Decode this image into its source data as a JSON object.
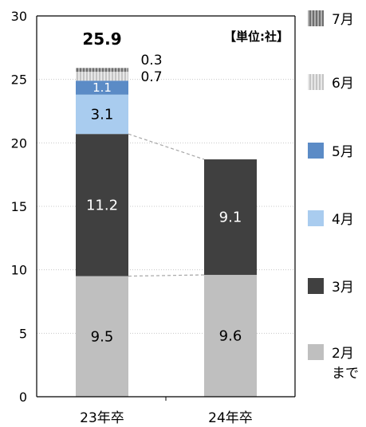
{
  "chart_data": {
    "type": "bar",
    "stacked": true,
    "categories": [
      "23年卒",
      "24年卒"
    ],
    "unit_note": "【単位:社】",
    "ylim": [
      0,
      30
    ],
    "yticks": [
      0,
      5,
      10,
      15,
      20,
      25,
      30
    ],
    "grid": true,
    "legend_position": "right",
    "total_labels": [
      "25.9",
      ""
    ],
    "series": [
      {
        "name": "2月まで",
        "color": "#bfbfbf",
        "values": [
          9.5,
          9.6
        ],
        "labels": [
          "9.5",
          "9.6"
        ],
        "label_color": "#000000"
      },
      {
        "name": "3月",
        "color": "#404040",
        "values": [
          11.2,
          9.1
        ],
        "labels": [
          "11.2",
          "9.1"
        ],
        "label_color": "#ffffff"
      },
      {
        "name": "4月",
        "color": "#a9ccef",
        "values": [
          3.1,
          0
        ],
        "labels": [
          "3.1",
          ""
        ],
        "label_color": "#000000"
      },
      {
        "name": "5月",
        "color": "#5b8bc6",
        "values": [
          1.1,
          0
        ],
        "labels": [
          "1.1",
          ""
        ],
        "label_color": "#ffffff"
      },
      {
        "name": "6月",
        "color": "#dcdcdc",
        "values": [
          0.7,
          0
        ],
        "labels": [
          "0.7",
          ""
        ],
        "label_color": "#000000",
        "pattern": "vstripe-light"
      },
      {
        "name": "7月",
        "color": "#8c8c8c",
        "values": [
          0.3,
          0
        ],
        "labels": [
          "0.3",
          ""
        ],
        "label_color": "#000000",
        "pattern": "vstripe-dark"
      }
    ]
  }
}
